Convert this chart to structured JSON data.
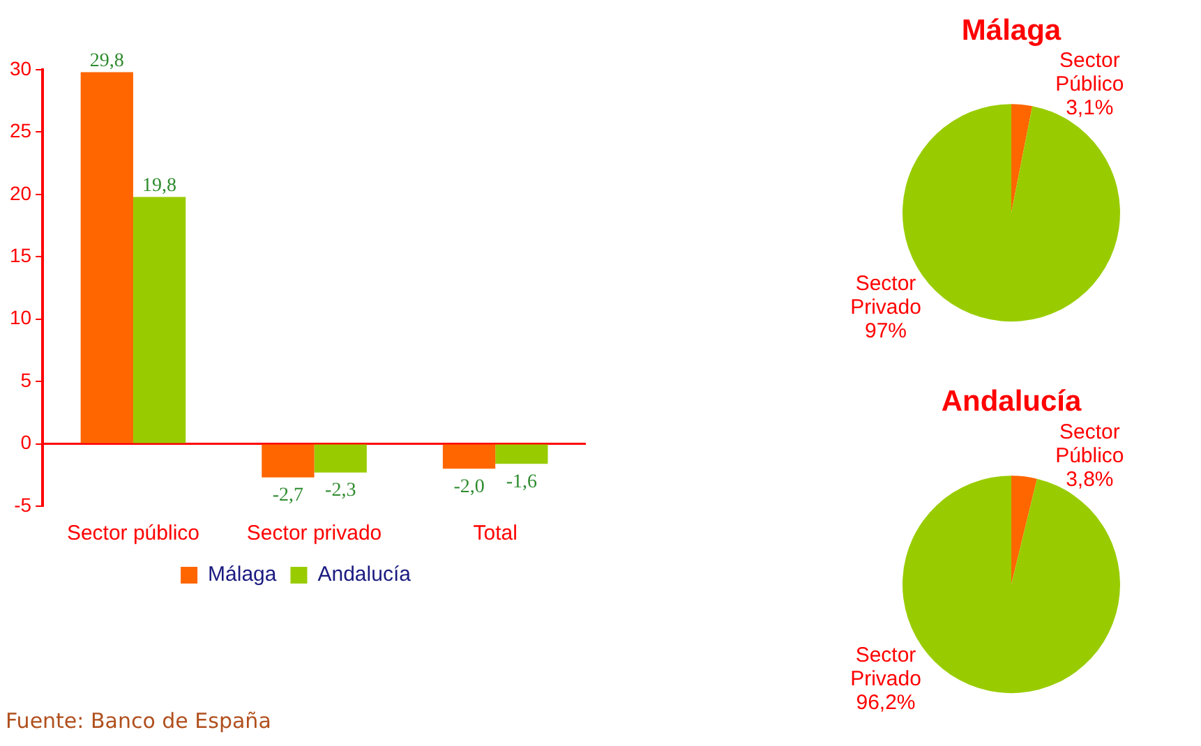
{
  "chart_data": [
    {
      "type": "bar",
      "categories": [
        "Sector público",
        "Sector privado",
        "Total"
      ],
      "series": [
        {
          "name": "Málaga",
          "color": "#ff6600",
          "values": [
            29.8,
            -2.7,
            -2.0
          ],
          "value_labels": [
            "29,8",
            "-2,7",
            "-2,0"
          ]
        },
        {
          "name": "Andalucía",
          "color": "#99cc00",
          "values": [
            19.8,
            -2.3,
            -1.6
          ],
          "value_labels": [
            "19,8",
            "-2,3",
            "-1,6"
          ]
        }
      ],
      "ylim": [
        -5,
        30
      ],
      "yticks": [
        -5,
        0,
        5,
        10,
        15,
        20,
        25,
        30
      ],
      "legend": "bottom",
      "ref_lines": [
        {
          "axis": "y",
          "value": 0,
          "color": "#ff0000"
        }
      ],
      "annotations": [
        "Fuente: Banco de España"
      ]
    },
    {
      "type": "pie",
      "title": "Málaga",
      "categories": [
        "Sector Público",
        "Sector Privado"
      ],
      "values": [
        3.1,
        97
      ],
      "colors": [
        "#ff6600",
        "#99cc00"
      ],
      "value_labels": [
        "3,1%",
        "97%"
      ]
    },
    {
      "type": "pie",
      "title": "Andalucía",
      "categories": [
        "Sector Público",
        "Sector Privado"
      ],
      "values": [
        3.8,
        96.2
      ],
      "colors": [
        "#ff6600",
        "#99cc00"
      ],
      "value_labels": [
        "3,8%",
        "96,2%"
      ]
    }
  ]
}
